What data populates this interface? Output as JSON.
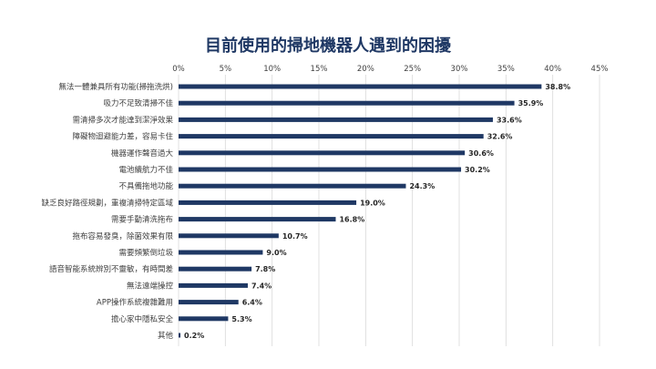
{
  "chart_data": {
    "type": "bar",
    "orientation": "horizontal",
    "title": "目前使用的掃地機器人遇到的困擾",
    "xlabel": "",
    "ylabel": "",
    "xlim": [
      0,
      45
    ],
    "x_ticks": [
      "0%",
      "5%",
      "10%",
      "15%",
      "20%",
      "25%",
      "30%",
      "35%",
      "40%",
      "45%"
    ],
    "x_tick_values": [
      0,
      5,
      10,
      15,
      20,
      25,
      30,
      35,
      40,
      45
    ],
    "grid": true,
    "legend": "none",
    "bar_color": "#1f3864",
    "categories": [
      "無法一體兼具所有功能(掃拖洗烘)",
      "吸力不足致清掃不佳",
      "需清掃多次才能達到潔淨效果",
      "障礙物迴避能力差，容易卡住",
      "機器運作聲音過大",
      "電池續航力不佳",
      "不具備拖地功能",
      "缺乏良好路徑規劃，重複清掃特定區域",
      "需要手動清洗拖布",
      "拖布容易發臭，除菌效果有限",
      "需要頻繁倒垃圾",
      "語音智能系統辨別不靈敏，有時間差",
      "無法遠端操控",
      "APP操作系統複雜難用",
      "擔心家中隱私安全",
      "其他"
    ],
    "values": [
      38.8,
      35.9,
      33.6,
      32.6,
      30.6,
      30.2,
      24.3,
      19.0,
      16.8,
      10.7,
      9.0,
      7.8,
      7.4,
      6.4,
      5.3,
      0.2
    ],
    "value_labels": [
      "38.8%",
      "35.9%",
      "33.6%",
      "32.6%",
      "30.6%",
      "30.2%",
      "24.3%",
      "19.0%",
      "16.8%",
      "10.7%",
      "9.0%",
      "7.8%",
      "7.4%",
      "6.4%",
      "5.3%",
      "0.2%"
    ]
  }
}
